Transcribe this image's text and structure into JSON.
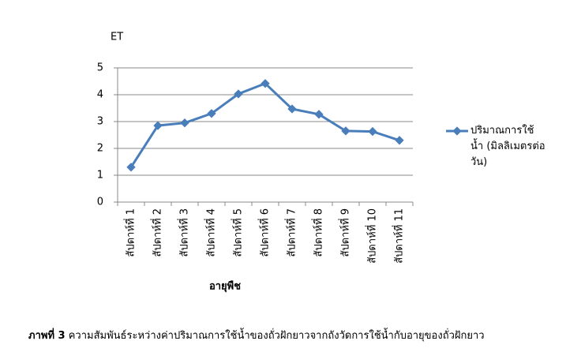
{
  "chart_data": {
    "type": "line",
    "y_label": "ET",
    "x_label": "อายุพืช",
    "categories": [
      "สัปดาห์ที่ 1",
      "สัปดาห์ที่ 2",
      "สัปดาห์ที่ 3",
      "สัปดาห์ที่ 4",
      "สัปดาห์ที่ 5",
      "สัปดาห์ที่ 6",
      "สัปดาห์ที่ 7",
      "สัปดาห์ที่ 8",
      "สัปดาห์ที่ 9",
      "สัปดาห์ที่ 10",
      "สัปดาห์ที่ 11"
    ],
    "series": [
      {
        "name": "ปริมาณการใช้น้ำ (มิลลิเมตรต่อวัน)",
        "color": "#4a7ebb",
        "values": [
          1.3,
          2.85,
          2.95,
          3.3,
          4.03,
          4.42,
          3.47,
          3.27,
          2.65,
          2.63,
          2.3
        ]
      }
    ],
    "ylim": [
      0,
      5
    ],
    "yticks": [
      0,
      1,
      2,
      3,
      4,
      5
    ],
    "grid": true,
    "legend": "right"
  },
  "caption": {
    "label": "ภาพที่ 3",
    "text": "ความสัมพันธ์ระหว่างค่าปริมาณการใช้น้ำของถั่วฝักยาวจากถังวัดการใช้น้ำกับอายุของถั่วฝักยาว"
  }
}
